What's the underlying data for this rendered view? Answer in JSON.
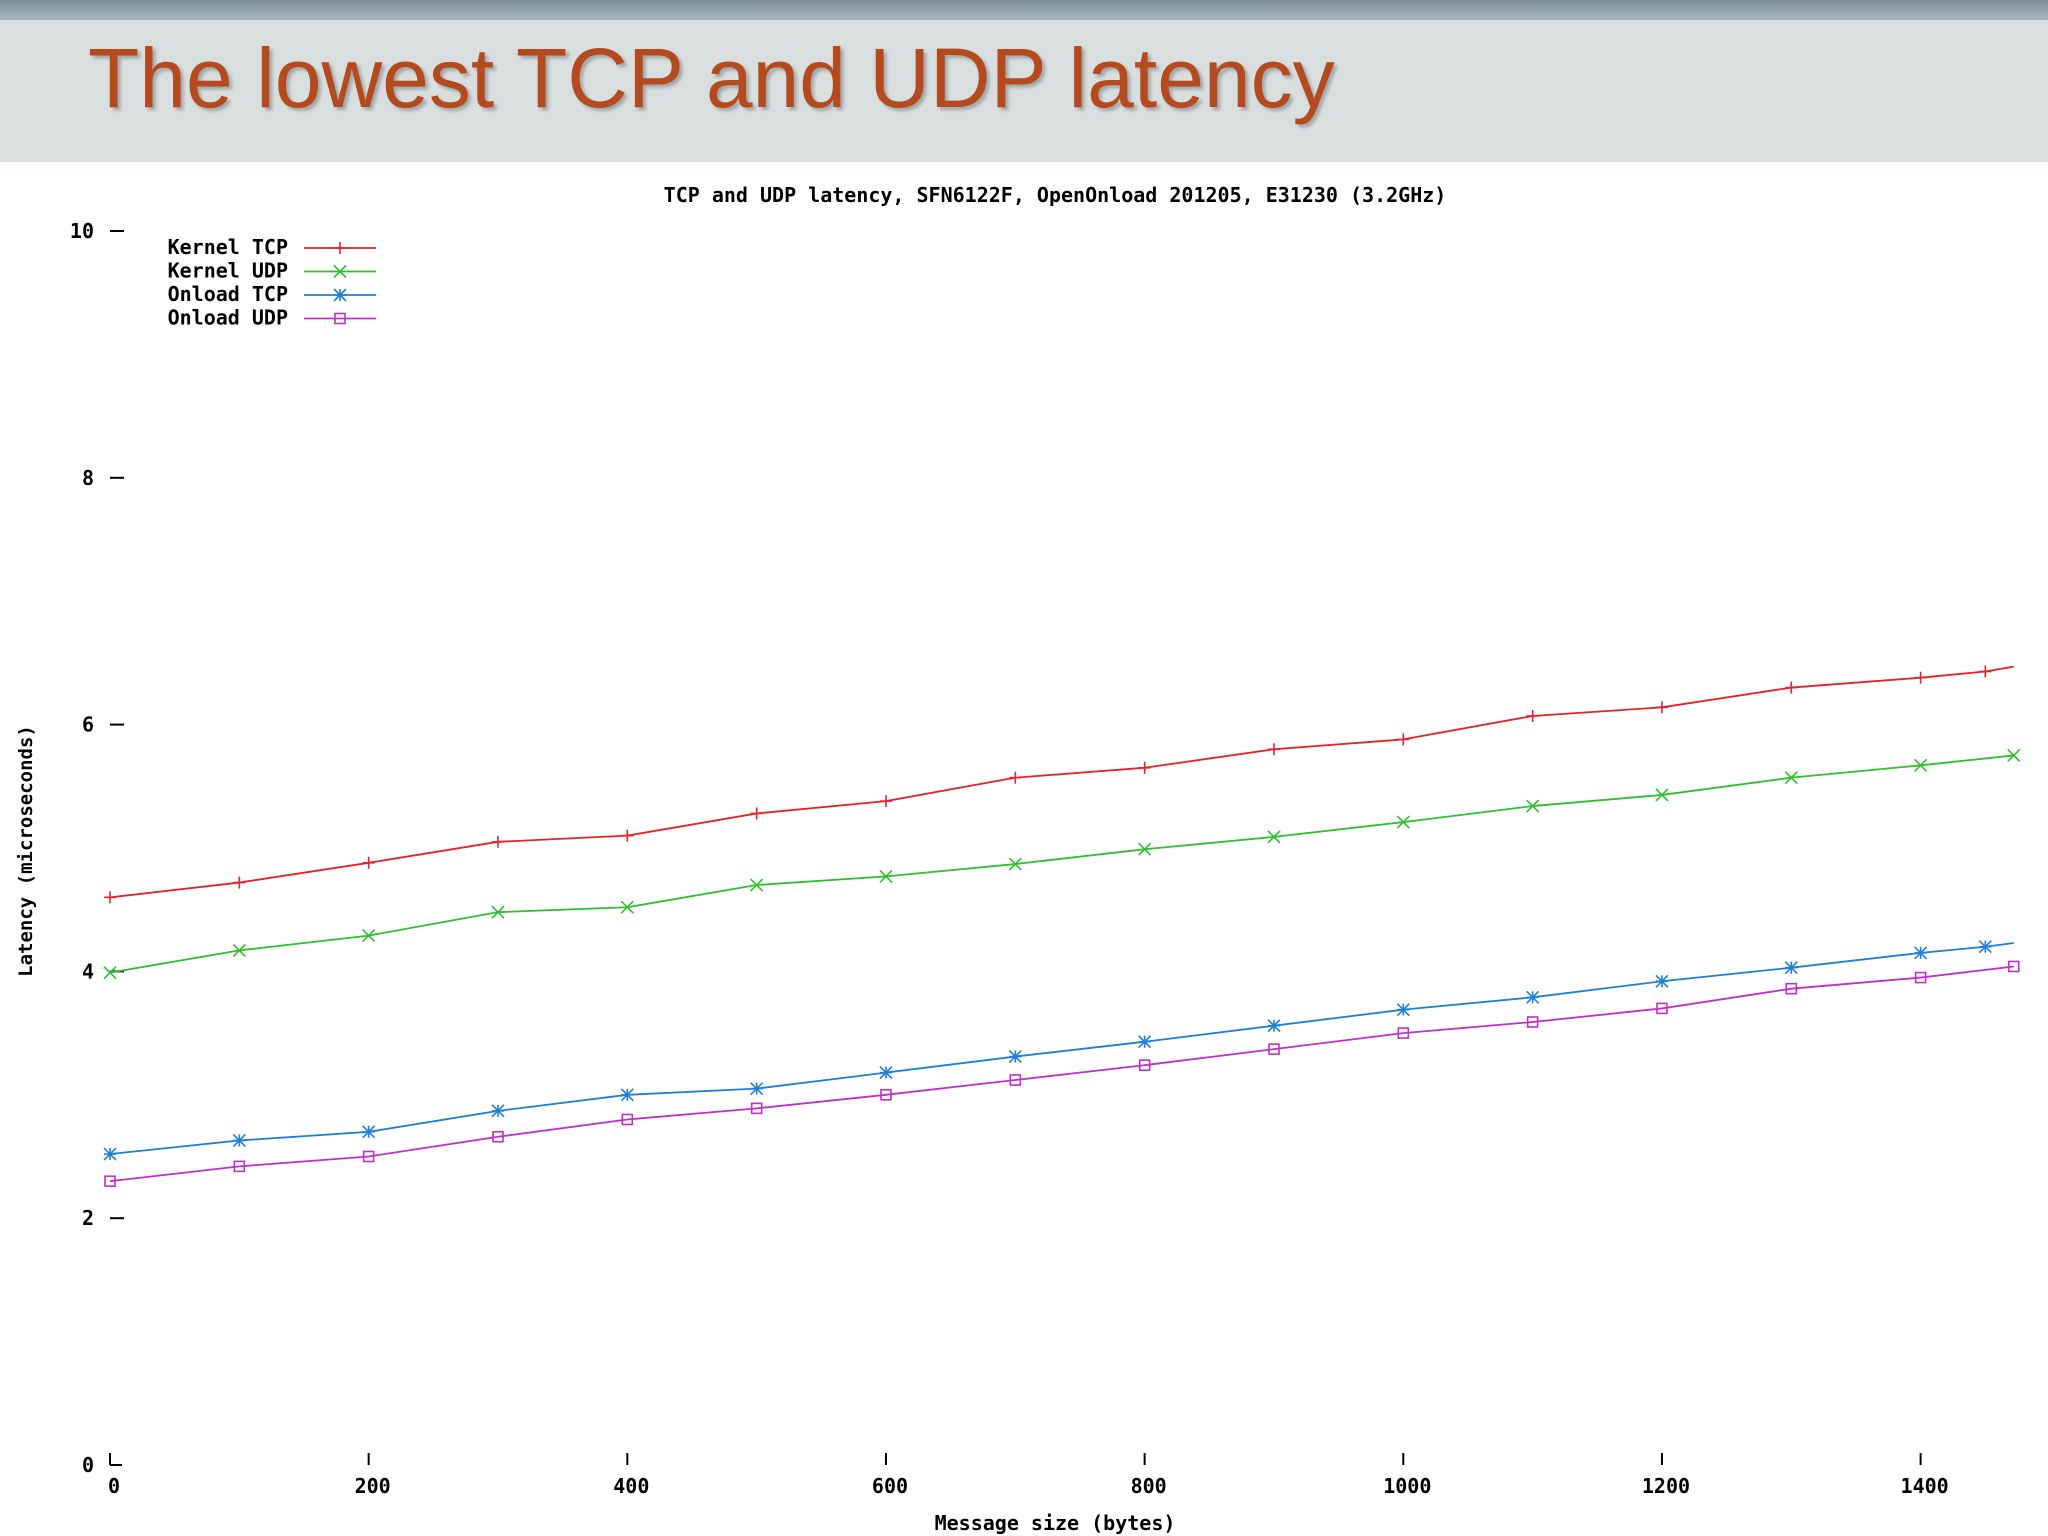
{
  "slide": {
    "title": "The lowest TCP and UDP latency"
  },
  "chart_data": {
    "type": "line",
    "title": "TCP and UDP latency, SFN6122F, OpenOnload 201205, E31230 (3.2GHz)",
    "xlabel": "Message size (bytes)",
    "ylabel": "Latency (microseconds)",
    "xlim": [
      0,
      1470
    ],
    "ylim": [
      0,
      10
    ],
    "xticks": [
      0,
      200,
      400,
      600,
      800,
      1000,
      1200,
      1400
    ],
    "yticks": [
      0,
      2,
      4,
      6,
      8,
      10
    ],
    "grid": false,
    "legend": "top-left",
    "x": [
      0,
      100,
      200,
      300,
      400,
      500,
      600,
      700,
      800,
      900,
      1000,
      1100,
      1200,
      1300,
      1400,
      1450,
      1472
    ],
    "series": [
      {
        "name": "Kernel TCP",
        "color": "#e8202a",
        "marker": "plus",
        "values": [
          4.6,
          4.72,
          4.88,
          5.05,
          5.1,
          5.28,
          5.38,
          5.57,
          5.65,
          5.8,
          5.88,
          6.07,
          6.14,
          6.3,
          6.38,
          6.43,
          6.47
        ]
      },
      {
        "name": "Kernel UDP",
        "color": "#2fbf2f",
        "marker": "x",
        "values": [
          3.99,
          4.17,
          4.29,
          4.48,
          4.52,
          4.7,
          4.77,
          4.87,
          4.99,
          5.09,
          5.21,
          5.34,
          5.43,
          5.57,
          5.67,
          null,
          5.75
        ]
      },
      {
        "name": "Onload TCP",
        "color": "#1e7fd8",
        "marker": "star",
        "values": [
          2.52,
          2.63,
          2.7,
          2.87,
          3.0,
          3.05,
          3.18,
          3.31,
          3.43,
          3.56,
          3.69,
          3.79,
          3.92,
          4.03,
          4.15,
          4.2,
          4.23
        ]
      },
      {
        "name": "Onload UDP",
        "color": "#c030c8",
        "marker": "square",
        "values": [
          2.3,
          2.42,
          2.5,
          2.66,
          2.8,
          2.89,
          3.0,
          3.12,
          3.24,
          3.37,
          3.5,
          3.59,
          3.7,
          3.86,
          3.95,
          null,
          4.04
        ]
      }
    ]
  }
}
